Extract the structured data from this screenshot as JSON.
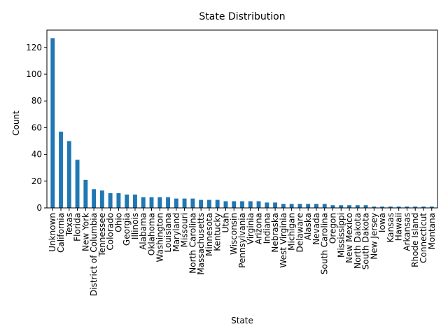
{
  "chart_data": {
    "type": "bar",
    "title": "State Distribution",
    "xlabel": "State",
    "ylabel": "Count",
    "ylim": [
      0,
      133
    ],
    "yticks": [
      0,
      20,
      40,
      60,
      80,
      100,
      120
    ],
    "grid": false,
    "bar_color": "#1f77b4",
    "categories": [
      "Unknown",
      "California",
      "Texas",
      "Florida",
      "New York",
      "District of Columbia",
      "Tennessee",
      "Colorado",
      "Ohio",
      "Georgia",
      "Illinois",
      "Alabama",
      "Oklahoma",
      "Washington",
      "Louisiana",
      "Maryland",
      "Missouri",
      "North Carolina",
      "Massachusetts",
      "Minnesota",
      "Kentucky",
      "Utah",
      "Wisconsin",
      "Pennsylvania",
      "Virginia",
      "Arizona",
      "Indiana",
      "Nebraska",
      "West Virginia",
      "Michigan",
      "Delaware",
      "Alaska",
      "Nevada",
      "South Carolina",
      "Oregon",
      "Mississippi",
      "New Mexico",
      "North Dakota",
      "South Dakota",
      "New Jersey",
      "Iowa",
      "Kansas",
      "Hawaii",
      "Arkansas",
      "Rhode Island",
      "Connecticut",
      "Montana"
    ],
    "values": [
      127,
      57,
      50,
      36,
      21,
      14,
      13,
      11,
      11,
      10,
      10,
      8,
      8,
      8,
      8,
      7,
      7,
      7,
      6,
      6,
      6,
      5,
      5,
      5,
      5,
      5,
      4,
      4,
      3,
      3,
      3,
      3,
      3,
      3,
      2,
      2,
      2,
      2,
      2,
      1,
      1,
      1,
      1,
      1,
      1,
      1,
      1
    ]
  }
}
